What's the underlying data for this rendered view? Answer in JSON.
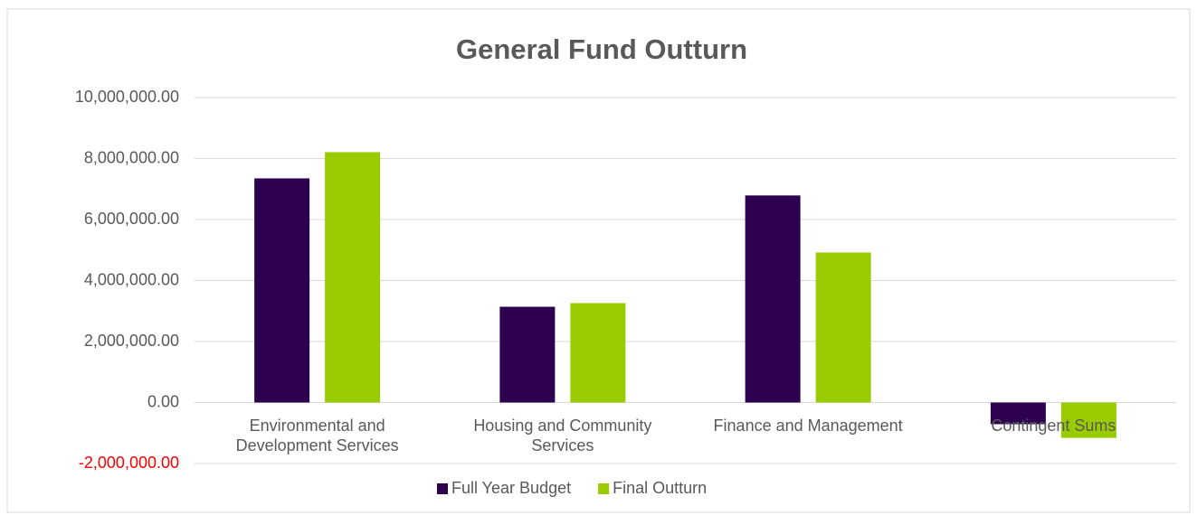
{
  "chart_data": {
    "type": "bar",
    "title": "General Fund Outturn",
    "categories": [
      "Environmental and Development Services",
      "Housing and Community Services",
      "Finance and Management",
      "Contingent Sums"
    ],
    "series": [
      {
        "name": "Full Year Budget",
        "color": "#2e0050",
        "values": [
          7350000,
          3140000,
          6790000,
          -710000
        ]
      },
      {
        "name": "Final Outturn",
        "color": "#99cc00",
        "values": [
          8210000,
          3260000,
          4920000,
          -1160000
        ]
      }
    ],
    "ylim": [
      -2000000,
      10000000
    ],
    "yticks": [
      {
        "value": -2000000,
        "label": "-2,000,000.00"
      },
      {
        "value": 0,
        "label": "0.00"
      },
      {
        "value": 2000000,
        "label": "2,000,000.00"
      },
      {
        "value": 4000000,
        "label": "4,000,000.00"
      },
      {
        "value": 6000000,
        "label": "6,000,000.00"
      },
      {
        "value": 8000000,
        "label": "8,000,000.00"
      },
      {
        "value": 10000000,
        "label": "10,000,000.00"
      }
    ],
    "negative_tick_color": "#ff0000",
    "grid": true,
    "legend": "bottom"
  }
}
